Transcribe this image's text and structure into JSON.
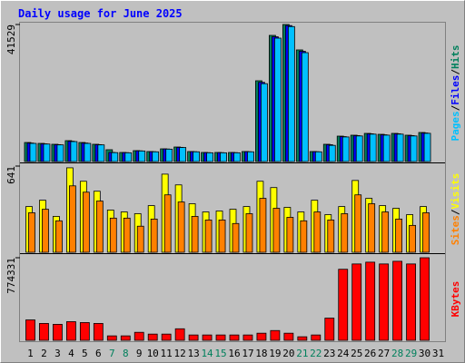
{
  "chart_data": [
    {
      "type": "bar",
      "title": "Daily usage for June 2025",
      "series": [
        {
          "name": "Hits",
          "color": "#00805c",
          "values": [
            5770,
            5500,
            5230,
            6330,
            5770,
            5230,
            3580,
            2750,
            3300,
            3030,
            3850,
            4400,
            3030,
            2750,
            2750,
            2750,
            3030,
            24480,
            38230,
            41529,
            33830,
            3030,
            5230,
            7700,
            7980,
            8530,
            8250,
            8530,
            7980,
            8800,
            null
          ]
        },
        {
          "name": "Files",
          "color": "#0000ff",
          "values": [
            5600,
            5350,
            5100,
            6150,
            5600,
            5100,
            2750,
            2700,
            3250,
            2980,
            3800,
            4300,
            2980,
            2700,
            2700,
            2700,
            2980,
            24000,
            37800,
            41200,
            33400,
            2980,
            5100,
            7550,
            7850,
            8400,
            8100,
            8400,
            7850,
            8650,
            null
          ]
        },
        {
          "name": "Pages",
          "color": "#00c0ff",
          "values": [
            5500,
            5300,
            5050,
            6050,
            5500,
            5050,
            2700,
            2650,
            3200,
            2950,
            3750,
            4250,
            2950,
            2650,
            2650,
            2650,
            2950,
            23600,
            37400,
            40900,
            33000,
            2950,
            4900,
            7450,
            7750,
            8300,
            8000,
            8300,
            7750,
            8550,
            null
          ]
        }
      ],
      "ylim": [
        0,
        41529
      ],
      "yticks": [
        41529
      ],
      "legend_separator": "/"
    },
    {
      "type": "bar",
      "series": [
        {
          "name": "Visits",
          "color": "#ffff00",
          "values": [
            340,
            387,
            267,
            628,
            528,
            454,
            314,
            300,
            287,
            347,
            581,
            501,
            361,
            300,
            307,
            320,
            340,
            528,
            481,
            334,
            300,
            387,
            280,
            340,
            534,
            401,
            347,
            327,
            280,
            340,
            null
          ]
        },
        {
          "name": "Sites",
          "color": "#ff8000",
          "values": [
            294,
            320,
            234,
            494,
            447,
            381,
            254,
            254,
            194,
            247,
            427,
            374,
            267,
            240,
            240,
            214,
            287,
            401,
            327,
            260,
            234,
            300,
            240,
            287,
            427,
            361,
            300,
            247,
            200,
            294,
            null
          ]
        }
      ],
      "ylim": [
        0,
        641
      ],
      "yticks": [
        641
      ],
      "legend_separator": "/"
    },
    {
      "type": "bar",
      "categories": [
        "1",
        "2",
        "3",
        "4",
        "5",
        "6",
        "7",
        "8",
        "9",
        "10",
        "11",
        "12",
        "13",
        "14",
        "15",
        "16",
        "17",
        "18",
        "19",
        "20",
        "21",
        "22",
        "23",
        "24",
        "25",
        "26",
        "27",
        "28",
        "29",
        "30",
        "31"
      ],
      "category_colors": [
        "#000000",
        "#000000",
        "#000000",
        "#000000",
        "#000000",
        "#000000",
        "#00805c",
        "#00805c",
        "#000000",
        "#000000",
        "#000000",
        "#000000",
        "#000000",
        "#00805c",
        "#00805c",
        "#000000",
        "#000000",
        "#000000",
        "#000000",
        "#000000",
        "#00805c",
        "#00805c",
        "#000000",
        "#000000",
        "#000000",
        "#000000",
        "#000000",
        "#00805c",
        "#00805c",
        "#000000",
        "#000000"
      ],
      "series": [
        {
          "name": "KBytes",
          "color": "#ff0000",
          "values": [
            191500,
            158200,
            149900,
            174900,
            166500,
            158200,
            41600,
            41600,
            74900,
            58300,
            58300,
            108200,
            50000,
            50000,
            50000,
            50000,
            50000,
            66600,
            91600,
            66600,
            33300,
            50000,
            208200,
            666100,
            716000,
            732700,
            716000,
            741000,
            716000,
            774331,
            null
          ]
        }
      ],
      "ylim": [
        0,
        774331
      ],
      "yticks": [
        774331
      ]
    }
  ]
}
